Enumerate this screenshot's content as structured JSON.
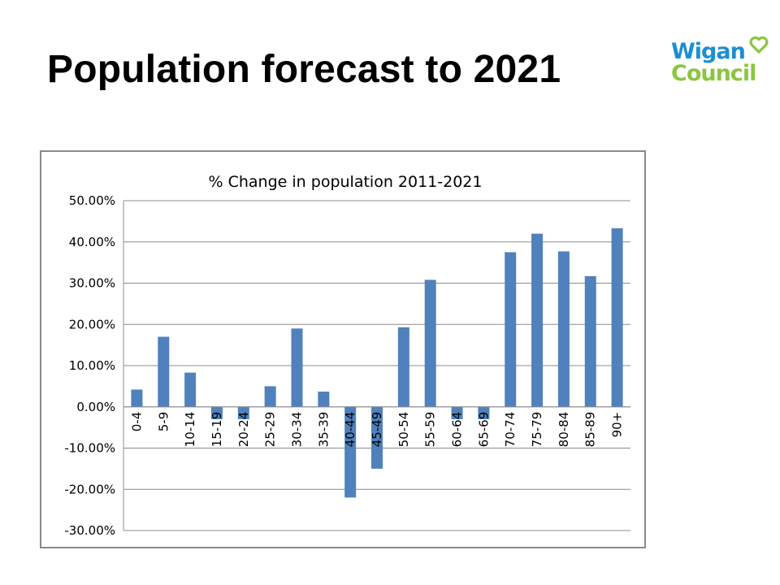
{
  "slide": {
    "title": "Population forecast to 2021"
  },
  "logo": {
    "line1": "Wigan",
    "line2": "Council",
    "colors": {
      "blue": "#1b8fd0",
      "green": "#8cc63f",
      "heart": "#8cc63f"
    }
  },
  "chart_data": {
    "type": "bar",
    "title": "% Change in population 2011-2021",
    "xlabel": "",
    "ylabel": "",
    "ylim": [
      -30,
      50
    ],
    "yticks": [
      "50.00%",
      "40.00%",
      "30.00%",
      "20.00%",
      "10.00%",
      "0.00%",
      "-10.00%",
      "-20.00%",
      "-30.00%"
    ],
    "grid": true,
    "legend": "none",
    "bar_color": "#4f81bd",
    "categories": [
      "0-4",
      "5-9",
      "10-14",
      "15-19",
      "20-24",
      "25-29",
      "30-34",
      "35-39",
      "40-44",
      "45-49",
      "50-54",
      "55-59",
      "60-64",
      "65-69",
      "70-74",
      "75-79",
      "80-84",
      "85-89",
      "90+"
    ],
    "values": [
      4.2,
      17.0,
      8.3,
      -3.0,
      -3.0,
      5.0,
      19.0,
      3.7,
      -22.0,
      -15.0,
      19.3,
      30.8,
      -3.0,
      -3.0,
      37.5,
      42.0,
      37.7,
      31.7,
      43.3
    ]
  }
}
